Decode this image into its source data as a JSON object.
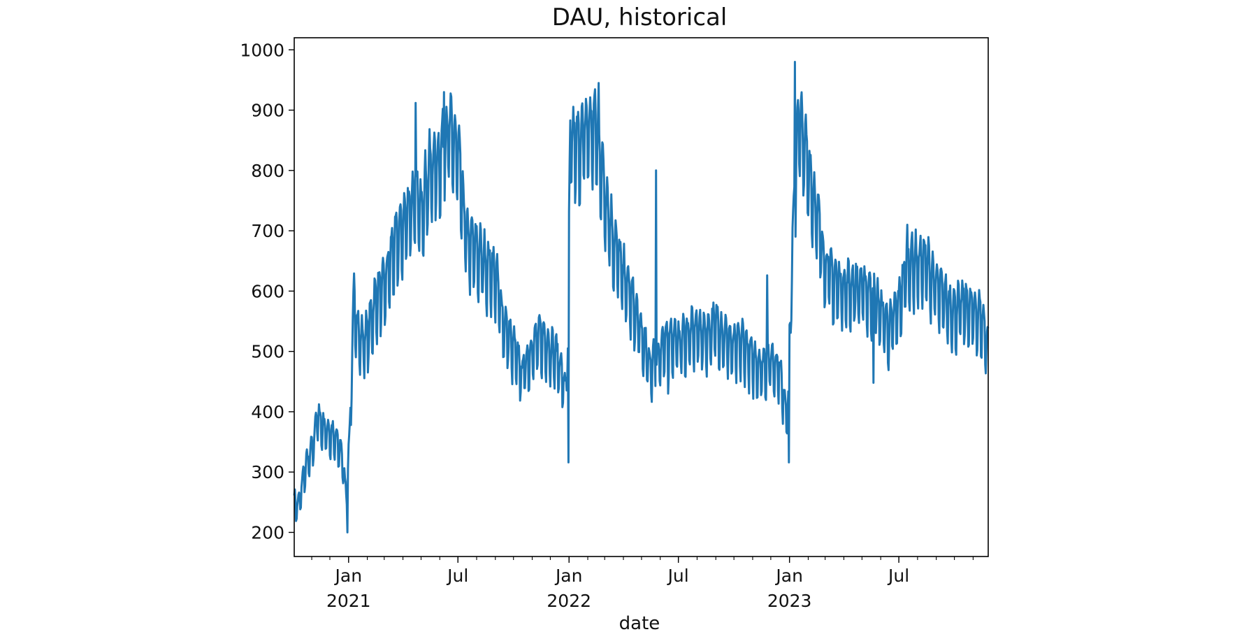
{
  "chart_data": {
    "type": "line",
    "title": "DAU, historical",
    "xlabel": "date",
    "ylabel": "",
    "ylim": [
      160,
      1020
    ],
    "xlim": [
      "2020-10-03",
      "2023-11-26"
    ],
    "yticks": [
      200,
      300,
      400,
      500,
      600,
      700,
      800,
      900,
      1000
    ],
    "xticks": [
      {
        "date": "2021-01-01",
        "label": "Jan",
        "sublabel": "2021"
      },
      {
        "date": "2021-07-01",
        "label": "Jul",
        "sublabel": ""
      },
      {
        "date": "2022-01-01",
        "label": "Jan",
        "sublabel": "2022"
      },
      {
        "date": "2022-07-01",
        "label": "Jul",
        "sublabel": ""
      },
      {
        "date": "2023-01-01",
        "label": "Jan",
        "sublabel": "2023"
      },
      {
        "date": "2023-07-01",
        "label": "Jul",
        "sublabel": ""
      }
    ],
    "grid": false,
    "legend": "none",
    "color": "#1f77b4",
    "series": [
      {
        "name": "",
        "x": [
          "2020-10-03",
          "2020-10-10",
          "2020-10-20",
          "2020-11-01",
          "2020-11-10",
          "2020-11-20",
          "2020-12-01",
          "2020-12-10",
          "2020-12-20",
          "2020-12-28",
          "2021-01-03",
          "2021-01-10",
          "2021-01-20",
          "2021-02-01",
          "2021-02-15",
          "2021-03-01",
          "2021-03-15",
          "2021-04-01",
          "2021-04-15",
          "2021-05-01",
          "2021-05-15",
          "2021-06-01",
          "2021-06-15",
          "2021-07-01",
          "2021-07-15",
          "2021-08-01",
          "2021-08-15",
          "2021-09-01",
          "2021-09-15",
          "2021-10-01",
          "2021-10-15",
          "2021-11-01",
          "2021-11-15",
          "2021-12-01",
          "2021-12-15",
          "2021-12-26",
          "2021-12-30",
          "2022-01-03",
          "2022-01-15",
          "2022-02-01",
          "2022-02-15",
          "2022-03-01",
          "2022-03-15",
          "2022-04-01",
          "2022-04-15",
          "2022-05-01",
          "2022-05-15",
          "2022-06-01",
          "2022-06-15",
          "2022-07-01",
          "2022-07-15",
          "2022-08-01",
          "2022-08-15",
          "2022-09-01",
          "2022-09-15",
          "2022-10-01",
          "2022-10-15",
          "2022-11-01",
          "2022-11-15",
          "2022-12-01",
          "2022-12-15",
          "2022-12-26",
          "2022-12-30",
          "2023-01-03",
          "2023-01-15",
          "2023-02-01",
          "2023-02-15",
          "2023-03-01",
          "2023-03-15",
          "2023-04-01",
          "2023-04-15",
          "2023-05-01",
          "2023-05-15",
          "2023-06-01",
          "2023-06-15",
          "2023-07-01",
          "2023-07-15",
          "2023-08-01",
          "2023-08-15",
          "2023-09-01",
          "2023-09-15",
          "2023-10-01",
          "2023-10-15",
          "2023-11-01",
          "2023-11-15",
          "2023-11-26"
        ],
        "y": [
          250,
          240,
          300,
          330,
          390,
          370,
          360,
          350,
          330,
          260,
          360,
          580,
          510,
          520,
          580,
          600,
          660,
          700,
          740,
          730,
          790,
          810,
          860,
          820,
          680,
          660,
          640,
          620,
          540,
          500,
          460,
          500,
          520,
          500,
          480,
          430,
          500,
          840,
          830,
          860,
          860,
          760,
          680,
          620,
          580,
          520,
          470,
          490,
          520,
          510,
          520,
          530,
          520,
          540,
          520,
          500,
          510,
          480,
          470,
          480,
          470,
          400,
          420,
          580,
          880,
          800,
          720,
          640,
          610,
          600,
          600,
          600,
          590,
          560,
          530,
          570,
          640,
          640,
          640,
          600,
          580,
          560,
          570,
          560,
          550,
          500
        ]
      }
    ],
    "spikes": [
      {
        "x": "2021-04-22",
        "y": 912
      },
      {
        "x": "2021-06-08",
        "y": 930
      },
      {
        "x": "2021-12-31",
        "y": 316
      },
      {
        "x": "2022-01-15",
        "y": 880
      },
      {
        "x": "2022-02-19",
        "y": 945
      },
      {
        "x": "2022-05-25",
        "y": 800
      },
      {
        "x": "2022-06-14",
        "y": 430
      },
      {
        "x": "2022-11-25",
        "y": 626
      },
      {
        "x": "2022-12-21",
        "y": 380
      },
      {
        "x": "2022-12-31",
        "y": 316
      },
      {
        "x": "2023-01-10",
        "y": 980
      },
      {
        "x": "2023-05-20",
        "y": 448
      },
      {
        "x": "2023-07-15",
        "y": 710
      },
      {
        "x": "2020-12-30",
        "y": 200
      }
    ]
  }
}
